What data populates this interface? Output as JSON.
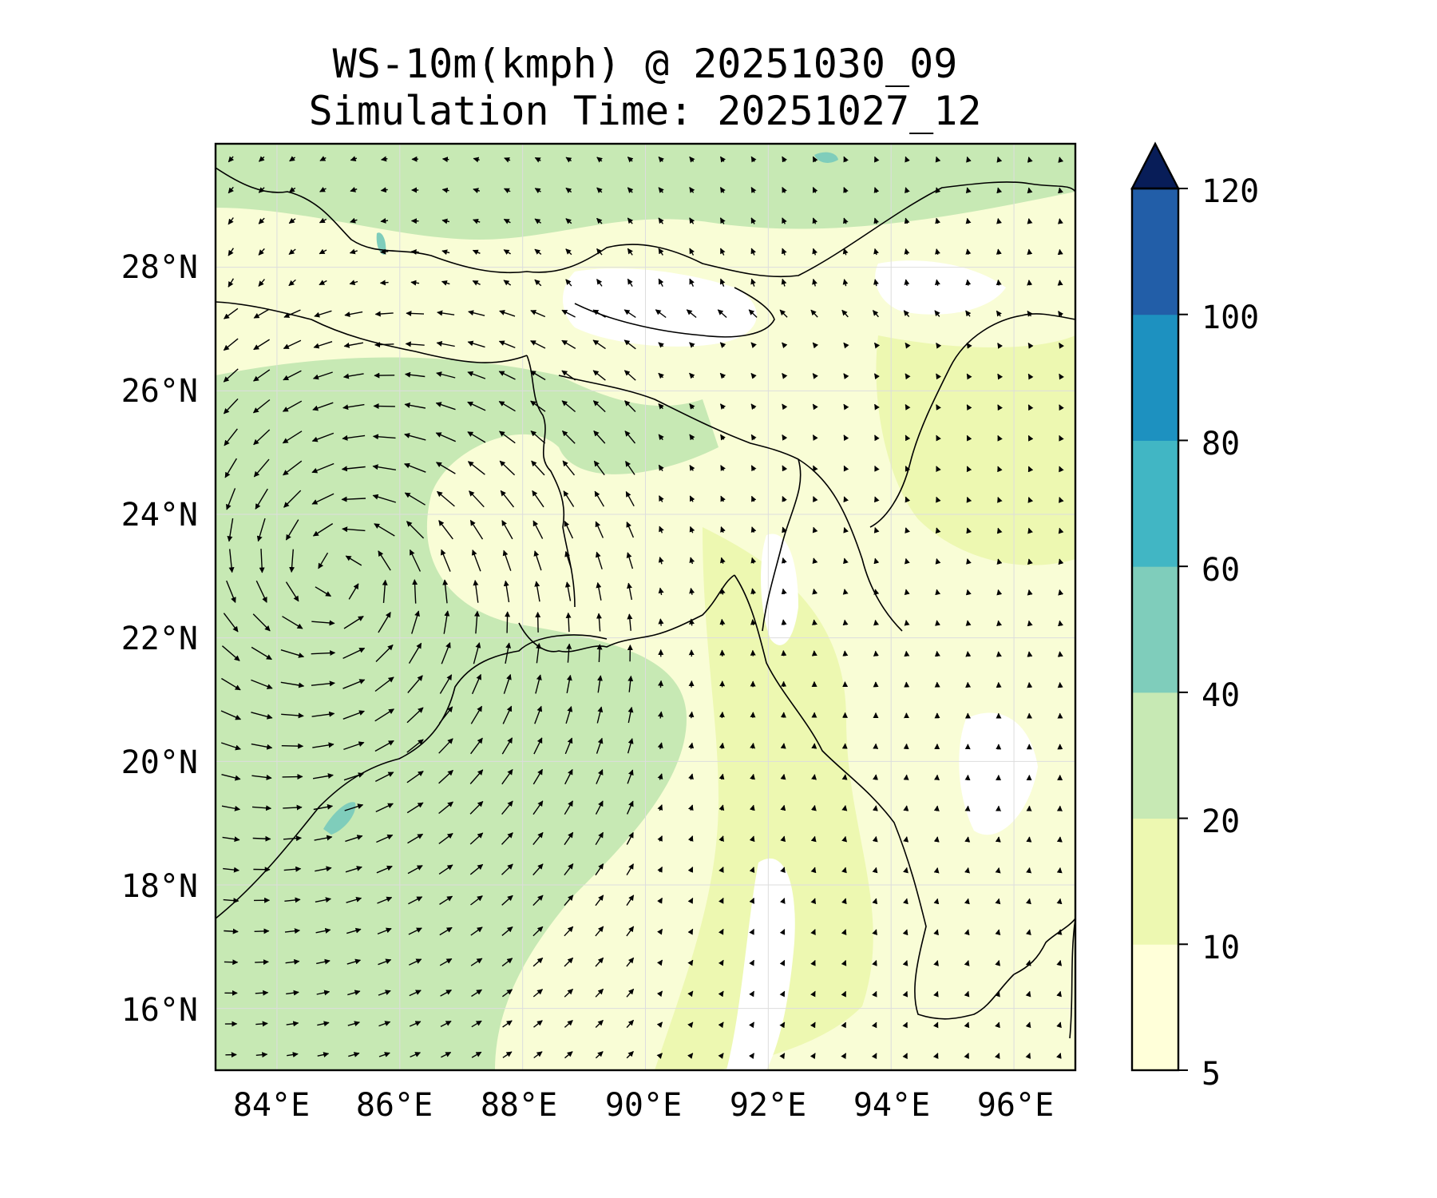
{
  "title": {
    "line1": "WS-10m(kmph) @ 20251030_09",
    "line2": "Simulation Time: 20251027_12"
  },
  "map": {
    "lon_range": [
      83.0,
      97.0
    ],
    "lat_range": [
      15.0,
      30.0
    ],
    "lon_ticks": [
      84,
      86,
      88,
      90,
      92,
      94,
      96
    ],
    "lat_ticks": [
      16,
      18,
      20,
      22,
      24,
      26,
      28
    ],
    "lon_tick_labels": [
      "84°E",
      "86°E",
      "88°E",
      "90°E",
      "92°E",
      "94°E",
      "96°E"
    ],
    "lat_tick_labels": [
      "16°N",
      "18°N",
      "20°N",
      "22°N",
      "24°N",
      "26°N",
      "28°N"
    ],
    "grid": true,
    "vector_field": "10 m wind vectors; cyclonic circulation centred near 85°E 23°N over the Bay of Bengal / north-east India"
  },
  "colorbar": {
    "levels": [
      5,
      10,
      20,
      40,
      60,
      80,
      100,
      120
    ],
    "labels": [
      "5",
      "10",
      "20",
      "40",
      "60",
      "80",
      "100",
      "120"
    ],
    "colors": [
      "#ffffd9",
      "#edf8b1",
      "#c7e9b4",
      "#7fcdbb",
      "#41b6c4",
      "#1d91c0",
      "#225ea8",
      "#0c2c84"
    ],
    "extend_color": "#081d58",
    "extend": "max"
  }
}
